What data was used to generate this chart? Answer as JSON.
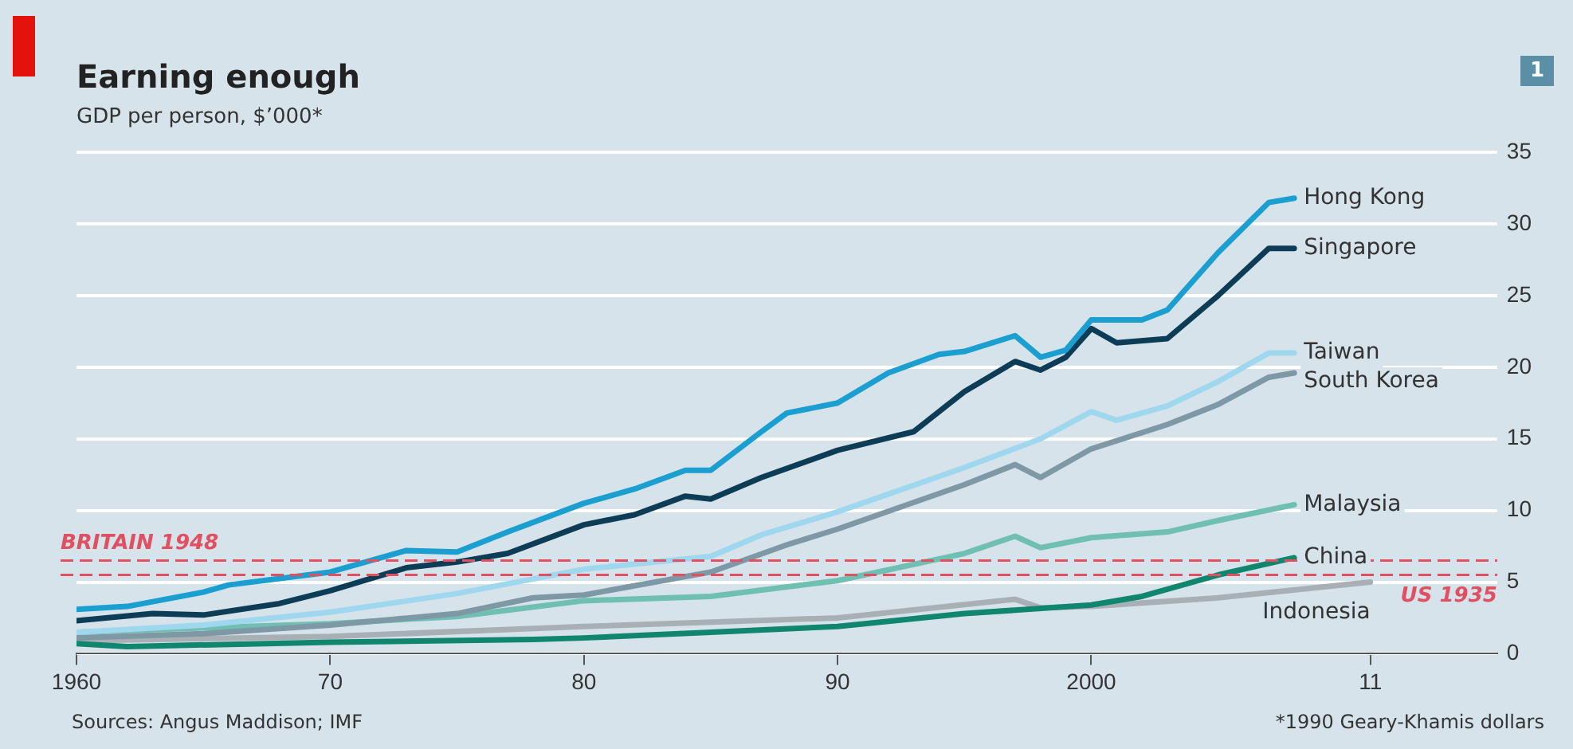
{
  "chart_data": {
    "type": "line",
    "title": "Earning enough",
    "subtitle": "GDP per person, $’000*",
    "xlim": [
      1960,
      2016
    ],
    "xticks": [
      {
        "value": 1960,
        "label": "1960"
      },
      {
        "value": 1970,
        "label": "70"
      },
      {
        "value": 1980,
        "label": "80"
      },
      {
        "value": 1990,
        "label": "90"
      },
      {
        "value": 2000,
        "label": "2000"
      },
      {
        "value": 2011,
        "label": "11"
      }
    ],
    "ylim": [
      0,
      35
    ],
    "yticks": [
      0,
      5,
      10,
      15,
      20,
      25,
      30,
      35
    ],
    "grid": "y",
    "legend": false,
    "marker": "none",
    "line_style": "solid",
    "series": [
      {
        "name": "Hong Kong",
        "color": "#1a9fd0",
        "x": [
          1960,
          1962,
          1965,
          1966,
          1970,
          1973,
          1975,
          1977,
          1980,
          1982,
          1984,
          1985,
          1987,
          1988,
          1990,
          1992,
          1994,
          1995,
          1997,
          1998,
          1999,
          2000,
          2002,
          2003,
          2005,
          2007,
          2008
        ],
        "values": [
          3.1,
          3.3,
          4.3,
          4.8,
          5.7,
          7.2,
          7.1,
          8.5,
          10.5,
          11.5,
          12.8,
          12.8,
          15.5,
          16.8,
          17.5,
          19.6,
          20.9,
          21.1,
          22.2,
          20.7,
          21.2,
          23.3,
          23.3,
          24.0,
          28.0,
          31.5,
          31.8
        ]
      },
      {
        "name": "Singapore",
        "color": "#0d3d56",
        "x": [
          1960,
          1963,
          1965,
          1968,
          1970,
          1973,
          1975,
          1977,
          1980,
          1982,
          1984,
          1985,
          1987,
          1990,
          1993,
          1995,
          1997,
          1998,
          1999,
          2000,
          2001,
          2003,
          2005,
          2007,
          2008
        ],
        "values": [
          2.3,
          2.8,
          2.7,
          3.5,
          4.4,
          6.0,
          6.4,
          7.0,
          9.0,
          9.7,
          11.0,
          10.8,
          12.3,
          14.2,
          15.5,
          18.3,
          20.4,
          19.8,
          20.7,
          22.7,
          21.7,
          22.0,
          25.0,
          28.3,
          28.3
        ]
      },
      {
        "name": "Taiwan",
        "color": "#9fd8ee",
        "x": [
          1960,
          1965,
          1970,
          1975,
          1980,
          1985,
          1987,
          1990,
          1995,
          1998,
          2000,
          2001,
          2003,
          2005,
          2007,
          2008
        ],
        "values": [
          1.5,
          2.0,
          2.9,
          4.2,
          5.9,
          6.8,
          8.3,
          9.9,
          13.0,
          15.0,
          16.9,
          16.3,
          17.3,
          19.0,
          21.0,
          21.0
        ]
      },
      {
        "name": "South Korea",
        "color": "#7f98a6",
        "x": [
          1960,
          1965,
          1970,
          1975,
          1978,
          1980,
          1985,
          1988,
          1990,
          1995,
          1997,
          1998,
          2000,
          2003,
          2005,
          2007,
          2008
        ],
        "values": [
          1.1,
          1.4,
          2.0,
          2.8,
          3.9,
          4.1,
          5.7,
          7.6,
          8.7,
          11.8,
          13.2,
          12.3,
          14.3,
          16.0,
          17.4,
          19.3,
          19.6
        ]
      },
      {
        "name": "Malaysia",
        "color": "#6fbfb2",
        "x": [
          1960,
          1965,
          1970,
          1975,
          1980,
          1985,
          1990,
          1995,
          1997,
          1998,
          2000,
          2003,
          2005,
          2008
        ],
        "values": [
          1.5,
          1.8,
          2.1,
          2.6,
          3.7,
          4.0,
          5.1,
          7.0,
          8.2,
          7.4,
          8.1,
          8.5,
          9.3,
          10.4
        ]
      },
      {
        "name": "China",
        "color": "#10866e",
        "x": [
          1960,
          1962,
          1970,
          1978,
          1980,
          1985,
          1990,
          1995,
          2000,
          2002,
          2005,
          2008
        ],
        "values": [
          0.7,
          0.5,
          0.8,
          1.0,
          1.1,
          1.5,
          1.9,
          2.8,
          3.4,
          4.0,
          5.5,
          6.7
        ]
      },
      {
        "name": "Indonesia",
        "color": "#a8b0b5",
        "x": [
          1960,
          1970,
          1980,
          1990,
          1997,
          1998,
          2000,
          2005,
          2011
        ],
        "values": [
          0.9,
          1.2,
          1.9,
          2.5,
          3.8,
          3.2,
          3.3,
          3.9,
          5.0
        ]
      }
    ],
    "ref_lines": [
      {
        "axis": "y",
        "value": 6.5,
        "label": "BRITAIN 1948",
        "color": "#e05060",
        "line_style": "dashed"
      },
      {
        "axis": "y",
        "value": 5.5,
        "label": "US 1935",
        "color": "#e05060",
        "line_style": "dashed"
      }
    ],
    "annotations": [
      "Sources: Angus Maddison; IMF",
      "*1990 Geary-Khamis dollars",
      "1"
    ]
  }
}
